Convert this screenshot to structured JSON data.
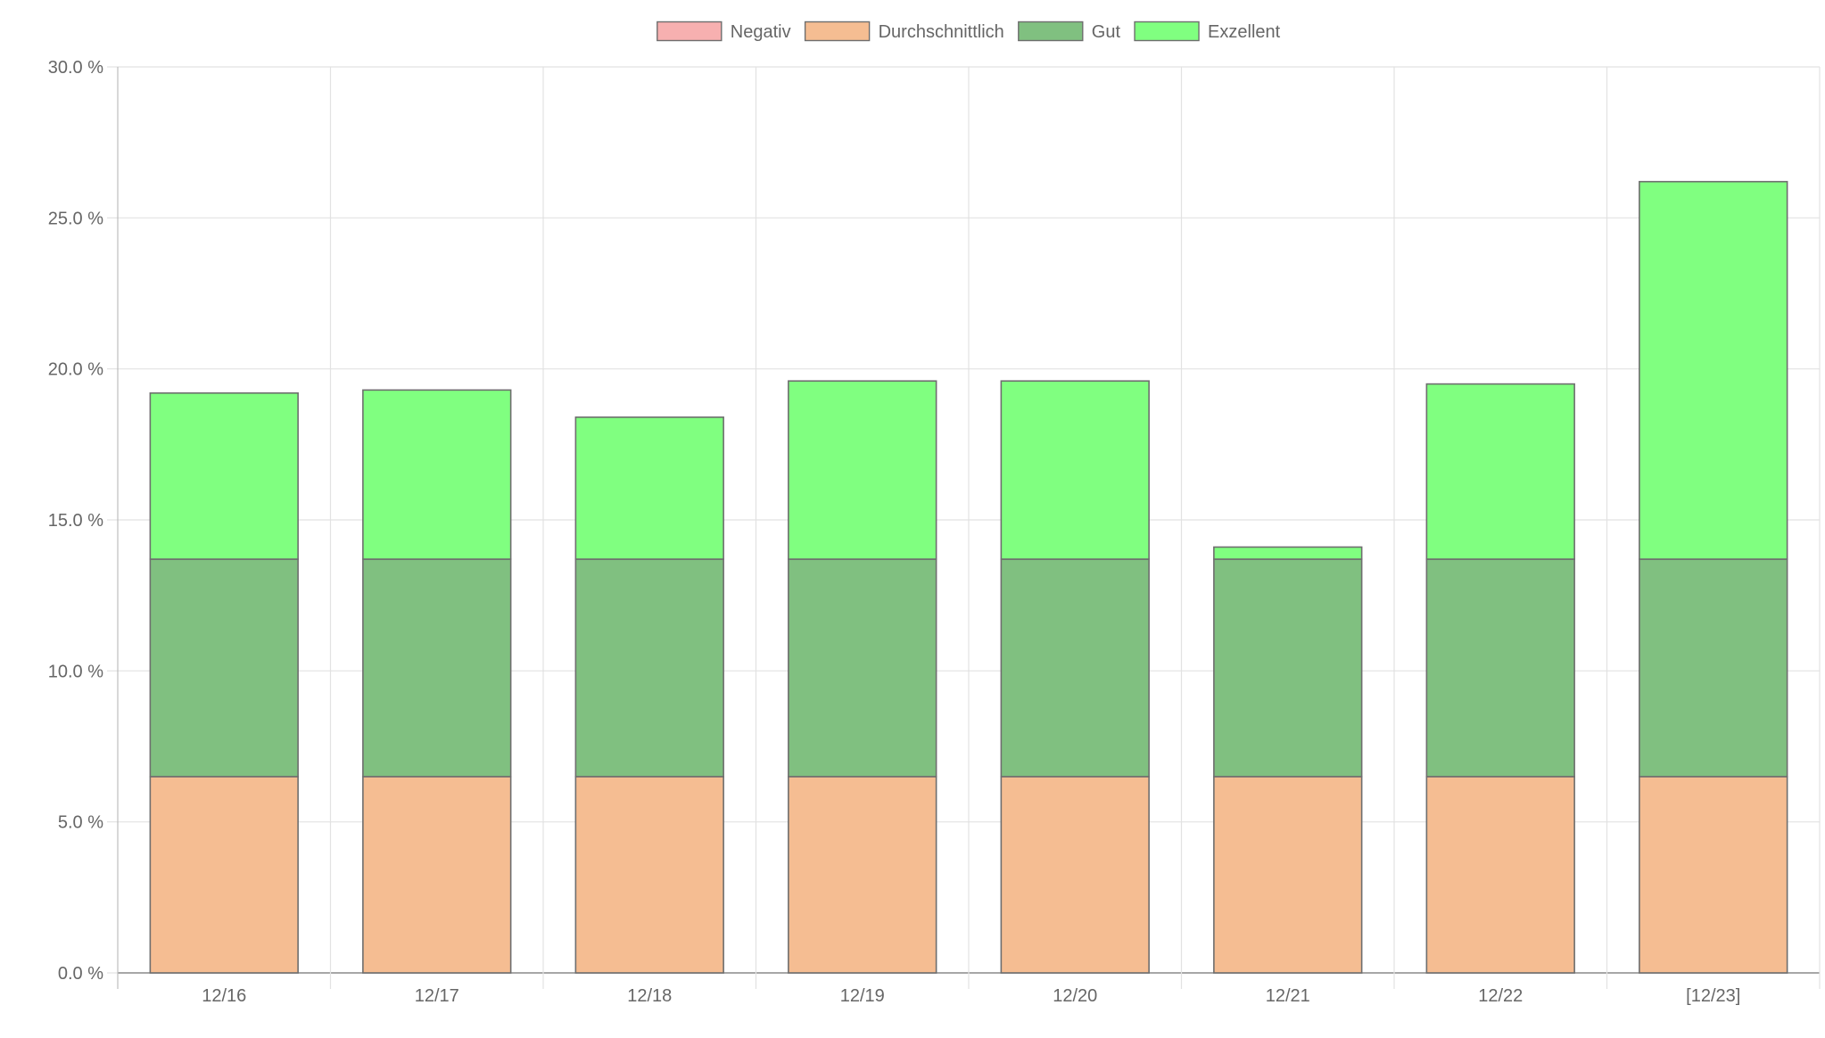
{
  "chart_data": {
    "type": "bar",
    "stacked": true,
    "title": "",
    "xlabel": "",
    "ylabel": "",
    "categories": [
      "12/16",
      "12/17",
      "12/18",
      "12/19",
      "12/20",
      "12/21",
      "12/22",
      "[12/23]"
    ],
    "ylim": [
      0,
      30
    ],
    "yticks": [
      0,
      5,
      10,
      15,
      20,
      25,
      30
    ],
    "ytick_labels": [
      "0.0 %",
      "5.0 %",
      "10.0 %",
      "15.0 %",
      "20.0 %",
      "25.0 %",
      "30.0 %"
    ],
    "grid": true,
    "legend": "top-center",
    "series": [
      {
        "name": "Negativ",
        "color": "#f7b0b0",
        "values": [
          0,
          0,
          0,
          0,
          0,
          0,
          0,
          0
        ]
      },
      {
        "name": "Durchschnittlich",
        "color": "#f5bd92",
        "values": [
          6.5,
          6.5,
          6.5,
          6.5,
          6.5,
          6.5,
          6.5,
          6.5
        ]
      },
      {
        "name": "Gut",
        "color": "#80c080",
        "values": [
          7.2,
          7.2,
          7.2,
          7.2,
          7.2,
          7.2,
          7.2,
          7.2
        ]
      },
      {
        "name": "Exzellent",
        "color": "#80ff80",
        "values": [
          5.5,
          5.6,
          4.7,
          5.9,
          5.9,
          0.4,
          5.8,
          12.5
        ]
      }
    ]
  }
}
